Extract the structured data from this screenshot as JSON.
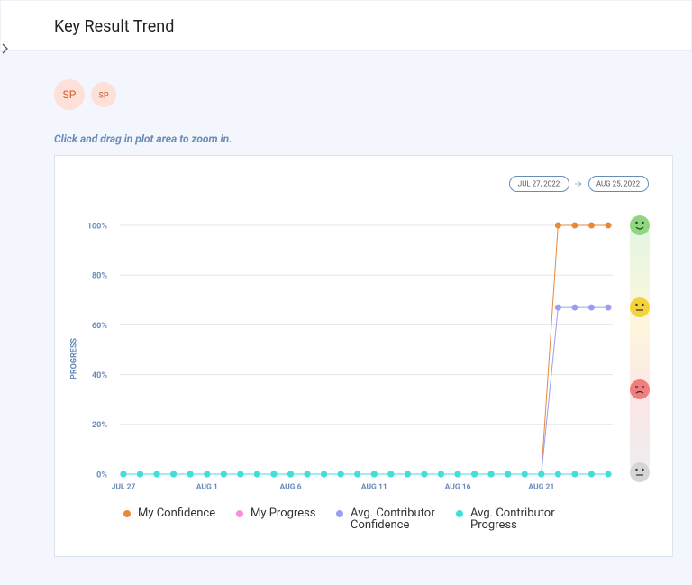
{
  "header": {
    "title": "Key Result Trend"
  },
  "avatars": [
    "SP",
    "SP"
  ],
  "hint": "Click and drag in plot area to zoom in.",
  "date_range": {
    "start": "JUL 27, 2022",
    "end": "AUG 25, 2022"
  },
  "chart_data": {
    "type": "line",
    "y_label": "PROGRESS",
    "categories": [
      "JUL 27",
      null,
      null,
      null,
      null,
      "AUG 1",
      null,
      null,
      null,
      null,
      "AUG 6",
      null,
      null,
      null,
      null,
      "AUG 11",
      null,
      null,
      null,
      null,
      "AUG 16",
      null,
      null,
      null,
      null,
      "AUG 21",
      null,
      null,
      null,
      null
    ],
    "ylim": [
      0,
      100
    ],
    "yticks": [
      {
        "value": 0,
        "label": "0%"
      },
      {
        "value": 20,
        "label": "20%"
      },
      {
        "value": 40,
        "label": "40%"
      },
      {
        "value": 60,
        "label": "60%"
      },
      {
        "value": 80,
        "label": "80%"
      },
      {
        "value": 100,
        "label": "100%"
      }
    ],
    "grid": true,
    "series": [
      {
        "name": "My Confidence",
        "color": "#e8893a",
        "values": [
          0,
          0,
          0,
          0,
          0,
          0,
          0,
          0,
          0,
          0,
          0,
          0,
          0,
          0,
          0,
          0,
          0,
          0,
          0,
          0,
          0,
          0,
          0,
          0,
          0,
          0,
          100,
          100,
          100,
          100
        ]
      },
      {
        "name": "My Progress",
        "color": "#f78fe0",
        "values": [
          0,
          0,
          0,
          0,
          0,
          0,
          0,
          0,
          0,
          0,
          0,
          0,
          0,
          0,
          0,
          0,
          0,
          0,
          0,
          0,
          0,
          0,
          0,
          0,
          0,
          0,
          0,
          0,
          0,
          0
        ]
      },
      {
        "name": "Avg. Contributor Confidence",
        "color": "#9d9df0",
        "values": [
          0,
          0,
          0,
          0,
          0,
          0,
          0,
          0,
          0,
          0,
          0,
          0,
          0,
          0,
          0,
          0,
          0,
          0,
          0,
          0,
          0,
          0,
          0,
          0,
          0,
          0,
          67,
          67,
          67,
          67
        ]
      },
      {
        "name": "Avg. Contributor Progress",
        "color": "#3ee0dc",
        "values": [
          0,
          0,
          0,
          0,
          0,
          0,
          0,
          0,
          0,
          0,
          0,
          0,
          0,
          0,
          0,
          0,
          0,
          0,
          0,
          0,
          0,
          0,
          0,
          0,
          0,
          0,
          0,
          0,
          0,
          0
        ]
      }
    ]
  }
}
